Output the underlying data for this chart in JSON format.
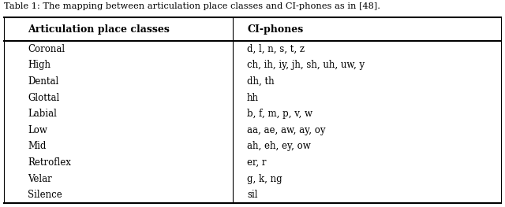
{
  "caption": "Table 1: The mapping between articulation place classes and CI-phones as in [48].",
  "col1_header": "Articulation place classes",
  "col2_header": "CI-phones",
  "rows": [
    [
      "Coronal",
      "d, l, n, s, t, z"
    ],
    [
      "High",
      "ch, ih, iy, jh, sh, uh, uw, y"
    ],
    [
      "Dental",
      "dh, th"
    ],
    [
      "Glottal",
      "hh"
    ],
    [
      "Labial",
      "b, f, m, p, v, w"
    ],
    [
      "Low",
      "aa, ae, aw, ay, oy"
    ],
    [
      "Mid",
      "ah, eh, ey, ow"
    ],
    [
      "Retroflex",
      "er, r"
    ],
    [
      "Velar",
      "g, k, ng"
    ],
    [
      "Silence",
      "sil"
    ]
  ],
  "bg_color": "#ffffff",
  "text_color": "#000000",
  "caption_fontsize": 8.2,
  "header_fontsize": 9.0,
  "body_fontsize": 8.5,
  "figwidth": 6.4,
  "figheight": 2.63,
  "dpi": 100
}
